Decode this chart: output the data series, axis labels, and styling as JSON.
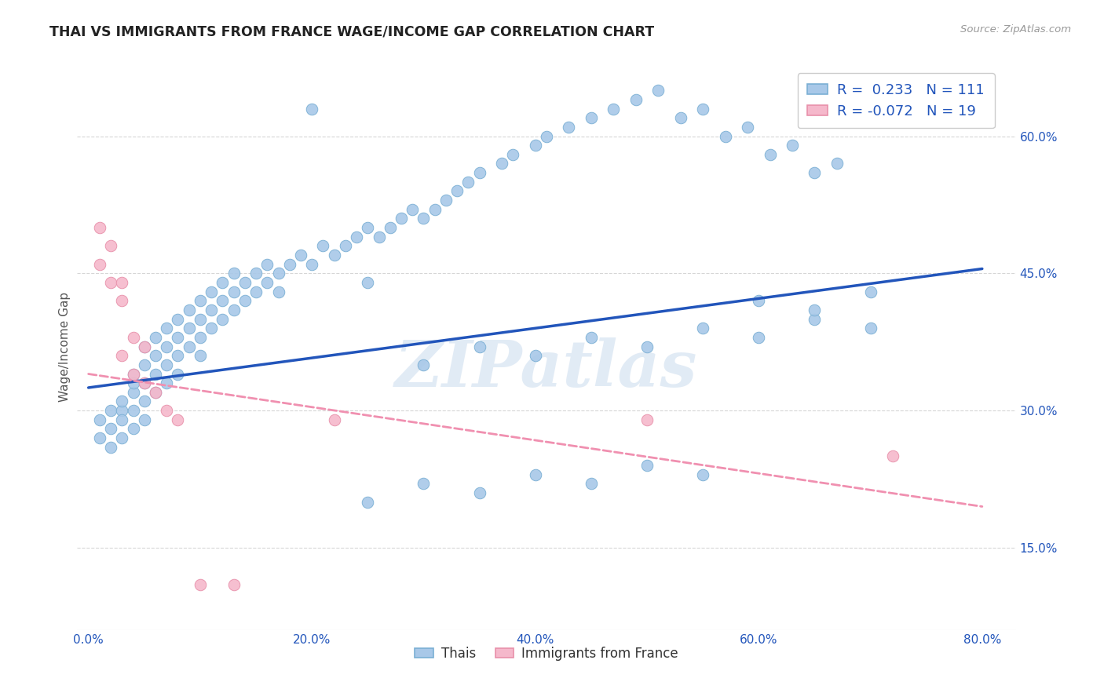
{
  "title": "THAI VS IMMIGRANTS FROM FRANCE WAGE/INCOME GAP CORRELATION CHART",
  "source": "Source: ZipAtlas.com",
  "ylabel": "Wage/Income Gap",
  "yticks": [
    0.15,
    0.3,
    0.45,
    0.6
  ],
  "ytick_labels": [
    "15.0%",
    "30.0%",
    "45.0%",
    "60.0%"
  ],
  "xticks": [
    0.0,
    0.2,
    0.4,
    0.6,
    0.8
  ],
  "xtick_labels": [
    "0.0%",
    "20.0%",
    "40.0%",
    "60.0%",
    "80.0%"
  ],
  "xlim": [
    -0.01,
    0.83
  ],
  "ylim": [
    0.06,
    0.68
  ],
  "R_thai": 0.233,
  "N_thai": 111,
  "R_france": -0.072,
  "N_france": 19,
  "thai_color": "#a8c8e8",
  "thai_edge_color": "#7aafd4",
  "france_color": "#f5b8cb",
  "france_edge_color": "#e890aa",
  "trend_thai_color": "#2255bb",
  "trend_france_color": "#f090b0",
  "trend_thai_x0": 0.0,
  "trend_thai_y0": 0.325,
  "trend_thai_x1": 0.8,
  "trend_thai_y1": 0.455,
  "trend_france_x0": 0.0,
  "trend_france_y0": 0.34,
  "trend_france_x1": 0.8,
  "trend_france_y1": 0.195,
  "watermark": "ZIPatlas",
  "legend_label_thai": "Thais",
  "legend_label_france": "Immigrants from France",
  "thai_pts_x": [
    0.01,
    0.01,
    0.02,
    0.02,
    0.02,
    0.03,
    0.03,
    0.03,
    0.03,
    0.04,
    0.04,
    0.04,
    0.04,
    0.04,
    0.05,
    0.05,
    0.05,
    0.05,
    0.05,
    0.06,
    0.06,
    0.06,
    0.06,
    0.07,
    0.07,
    0.07,
    0.07,
    0.08,
    0.08,
    0.08,
    0.08,
    0.09,
    0.09,
    0.09,
    0.1,
    0.1,
    0.1,
    0.1,
    0.11,
    0.11,
    0.11,
    0.12,
    0.12,
    0.12,
    0.13,
    0.13,
    0.13,
    0.14,
    0.14,
    0.15,
    0.15,
    0.16,
    0.16,
    0.17,
    0.17,
    0.18,
    0.19,
    0.2,
    0.21,
    0.22,
    0.23,
    0.24,
    0.25,
    0.26,
    0.27,
    0.28,
    0.29,
    0.3,
    0.31,
    0.32,
    0.33,
    0.34,
    0.35,
    0.37,
    0.38,
    0.4,
    0.41,
    0.43,
    0.45,
    0.47,
    0.49,
    0.51,
    0.53,
    0.55,
    0.57,
    0.59,
    0.61,
    0.63,
    0.65,
    0.67,
    0.25,
    0.3,
    0.35,
    0.4,
    0.45,
    0.5,
    0.55,
    0.6,
    0.65,
    0.7,
    0.2,
    0.25,
    0.3,
    0.35,
    0.4,
    0.45,
    0.5,
    0.55,
    0.6,
    0.65,
    0.7
  ],
  "thai_pts_y": [
    0.27,
    0.29,
    0.28,
    0.3,
    0.26,
    0.3,
    0.31,
    0.27,
    0.29,
    0.32,
    0.34,
    0.3,
    0.28,
    0.33,
    0.35,
    0.31,
    0.33,
    0.37,
    0.29,
    0.36,
    0.34,
    0.38,
    0.32,
    0.37,
    0.35,
    0.39,
    0.33,
    0.38,
    0.36,
    0.4,
    0.34,
    0.39,
    0.37,
    0.41,
    0.4,
    0.38,
    0.42,
    0.36,
    0.41,
    0.39,
    0.43,
    0.42,
    0.4,
    0.44,
    0.43,
    0.41,
    0.45,
    0.44,
    0.42,
    0.45,
    0.43,
    0.44,
    0.46,
    0.45,
    0.43,
    0.46,
    0.47,
    0.46,
    0.48,
    0.47,
    0.48,
    0.49,
    0.5,
    0.49,
    0.5,
    0.51,
    0.52,
    0.51,
    0.52,
    0.53,
    0.54,
    0.55,
    0.56,
    0.57,
    0.58,
    0.59,
    0.6,
    0.61,
    0.62,
    0.63,
    0.64,
    0.65,
    0.62,
    0.63,
    0.6,
    0.61,
    0.58,
    0.59,
    0.56,
    0.57,
    0.44,
    0.35,
    0.37,
    0.36,
    0.38,
    0.37,
    0.39,
    0.38,
    0.4,
    0.39,
    0.63,
    0.2,
    0.22,
    0.21,
    0.23,
    0.22,
    0.24,
    0.23,
    0.42,
    0.41,
    0.43
  ],
  "france_pts_x": [
    0.01,
    0.01,
    0.02,
    0.02,
    0.03,
    0.03,
    0.03,
    0.04,
    0.04,
    0.05,
    0.05,
    0.06,
    0.07,
    0.08,
    0.1,
    0.13,
    0.22,
    0.5,
    0.72
  ],
  "france_pts_y": [
    0.46,
    0.5,
    0.44,
    0.48,
    0.42,
    0.36,
    0.44,
    0.34,
    0.38,
    0.33,
    0.37,
    0.32,
    0.3,
    0.29,
    0.11,
    0.11,
    0.29,
    0.29,
    0.25
  ]
}
